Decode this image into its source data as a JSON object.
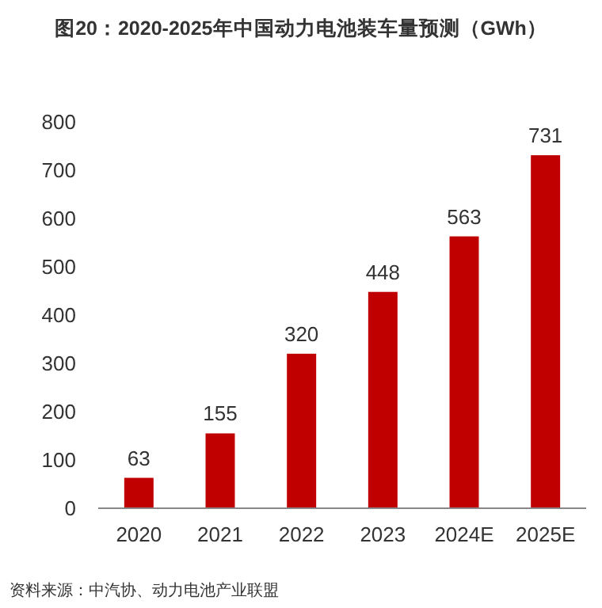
{
  "chart_data": {
    "type": "bar",
    "title": "图20：2020-2025年中国动力电池装车量预测（GWh）",
    "categories": [
      "2020",
      "2021",
      "2022",
      "2023",
      "2024E",
      "2025E"
    ],
    "values": [
      63,
      155,
      320,
      448,
      563,
      731
    ],
    "color": "#c00000",
    "ylim": [
      0,
      800
    ],
    "yticks": [
      0,
      100,
      200,
      300,
      400,
      500,
      600,
      700,
      800
    ],
    "data_labels": true,
    "grid": false,
    "annotations": [
      "资料来源：中汽协、动力电池产业联盟"
    ]
  }
}
